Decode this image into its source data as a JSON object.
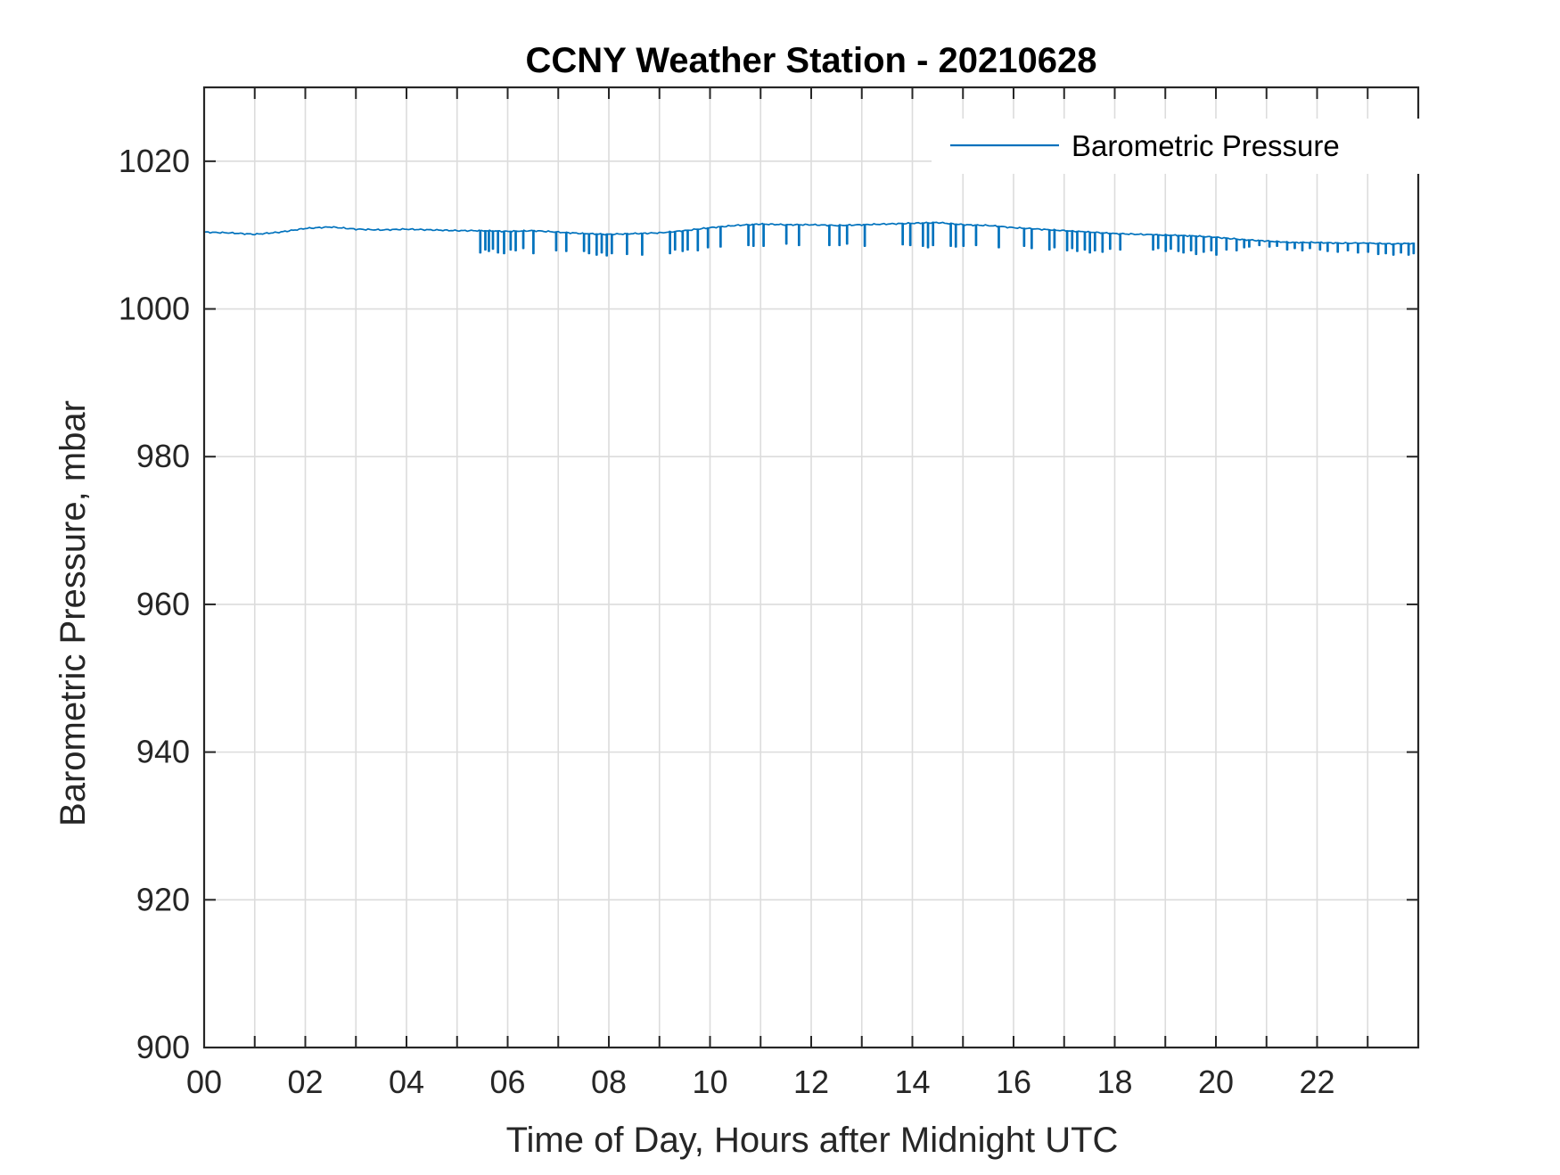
{
  "chart_data": {
    "type": "line",
    "title": "CCNY Weather Station - 20210628",
    "xlabel": "Time of Day, Hours after Midnight UTC",
    "ylabel": "Barometric Pressure, mbar",
    "xlim": [
      0,
      24
    ],
    "ylim": [
      900,
      1030
    ],
    "xticks": [
      0,
      2,
      4,
      6,
      8,
      10,
      12,
      14,
      16,
      18,
      20,
      22
    ],
    "xtick_labels": [
      "00",
      "02",
      "04",
      "06",
      "08",
      "10",
      "12",
      "14",
      "16",
      "18",
      "20",
      "22"
    ],
    "yticks": [
      900,
      920,
      940,
      960,
      980,
      1000,
      1020
    ],
    "ytick_labels": [
      "900",
      "920",
      "940",
      "960",
      "980",
      "1000",
      "1020"
    ],
    "grid": true,
    "legend_position": "top-right",
    "series": [
      {
        "name": "Barometric Pressure",
        "color": "#0072BD",
        "x": [
          0.0,
          0.5,
          1.0,
          1.5,
          2.0,
          2.5,
          3.0,
          3.5,
          4.0,
          4.5,
          5.0,
          5.5,
          6.0,
          6.5,
          7.0,
          7.5,
          8.0,
          8.5,
          9.0,
          9.5,
          10.0,
          10.5,
          11.0,
          11.5,
          12.0,
          12.5,
          13.0,
          13.5,
          14.0,
          14.5,
          15.0,
          15.5,
          16.0,
          16.5,
          17.0,
          17.5,
          18.0,
          18.5,
          19.0,
          19.5,
          20.0,
          20.5,
          21.0,
          21.5,
          22.0,
          22.5,
          23.0,
          23.5,
          23.95
        ],
        "values": [
          1010.4,
          1010.3,
          1010.1,
          1010.4,
          1010.9,
          1011.1,
          1010.8,
          1010.7,
          1010.8,
          1010.7,
          1010.6,
          1010.6,
          1010.5,
          1010.6,
          1010.4,
          1010.2,
          1010.1,
          1010.2,
          1010.3,
          1010.6,
          1011.0,
          1011.3,
          1011.5,
          1011.4,
          1011.4,
          1011.3,
          1011.4,
          1011.5,
          1011.6,
          1011.7,
          1011.4,
          1011.3,
          1011.0,
          1010.8,
          1010.6,
          1010.4,
          1010.2,
          1010.1,
          1010.0,
          1009.9,
          1009.7,
          1009.4,
          1009.2,
          1009.0,
          1009.0,
          1008.9,
          1008.9,
          1008.8,
          1008.9
        ]
      }
    ],
    "dropouts": [
      [
        5.45,
        1007.6
      ],
      [
        5.55,
        1008.0
      ],
      [
        5.62,
        1007.8
      ],
      [
        5.7,
        1008.1
      ],
      [
        5.8,
        1007.6
      ],
      [
        5.92,
        1007.5
      ],
      [
        6.05,
        1008.0
      ],
      [
        6.15,
        1007.9
      ],
      [
        6.3,
        1008.2
      ],
      [
        6.5,
        1007.5
      ],
      [
        6.95,
        1007.9
      ],
      [
        7.15,
        1007.8
      ],
      [
        7.5,
        1007.8
      ],
      [
        7.6,
        1007.5
      ],
      [
        7.75,
        1007.3
      ],
      [
        7.85,
        1007.6
      ],
      [
        7.95,
        1007.2
      ],
      [
        8.05,
        1007.5
      ],
      [
        8.35,
        1007.4
      ],
      [
        8.65,
        1007.3
      ],
      [
        9.2,
        1007.5
      ],
      [
        9.3,
        1008.0
      ],
      [
        9.45,
        1007.8
      ],
      [
        9.55,
        1008.0
      ],
      [
        9.75,
        1007.9
      ],
      [
        9.95,
        1008.3
      ],
      [
        10.2,
        1008.4
      ],
      [
        10.75,
        1008.6
      ],
      [
        10.85,
        1008.5
      ],
      [
        11.05,
        1008.5
      ],
      [
        11.5,
        1008.8
      ],
      [
        11.75,
        1008.6
      ],
      [
        12.35,
        1008.6
      ],
      [
        12.55,
        1008.6
      ],
      [
        12.7,
        1008.8
      ],
      [
        13.05,
        1008.5
      ],
      [
        13.8,
        1008.7
      ],
      [
        13.95,
        1008.6
      ],
      [
        14.2,
        1008.5
      ],
      [
        14.3,
        1008.3
      ],
      [
        14.4,
        1008.6
      ],
      [
        14.75,
        1008.5
      ],
      [
        14.85,
        1008.4
      ],
      [
        15.0,
        1008.5
      ],
      [
        15.25,
        1008.6
      ],
      [
        15.7,
        1008.3
      ],
      [
        16.2,
        1008.5
      ],
      [
        16.35,
        1008.2
      ],
      [
        16.7,
        1008.0
      ],
      [
        16.8,
        1008.3
      ],
      [
        17.05,
        1007.9
      ],
      [
        17.15,
        1008.2
      ],
      [
        17.25,
        1007.8
      ],
      [
        17.4,
        1008.0
      ],
      [
        17.5,
        1007.6
      ],
      [
        17.6,
        1007.9
      ],
      [
        17.75,
        1007.7
      ],
      [
        17.9,
        1008.1
      ],
      [
        18.1,
        1008.0
      ],
      [
        18.75,
        1008.0
      ],
      [
        18.85,
        1008.2
      ],
      [
        19.0,
        1007.8
      ],
      [
        19.1,
        1008.1
      ],
      [
        19.25,
        1007.8
      ],
      [
        19.35,
        1007.6
      ],
      [
        19.5,
        1007.9
      ],
      [
        19.6,
        1007.4
      ],
      [
        19.75,
        1007.7
      ],
      [
        19.9,
        1007.9
      ],
      [
        20.0,
        1007.3
      ],
      [
        20.2,
        1008.0
      ],
      [
        20.4,
        1007.9
      ],
      [
        20.55,
        1008.3
      ],
      [
        20.65,
        1008.4
      ],
      [
        20.85,
        1008.6
      ],
      [
        21.05,
        1008.4
      ],
      [
        21.2,
        1008.5
      ],
      [
        21.4,
        1008.0
      ],
      [
        21.55,
        1008.2
      ],
      [
        21.7,
        1007.9
      ],
      [
        21.85,
        1008.2
      ],
      [
        22.05,
        1008.0
      ],
      [
        22.2,
        1007.8
      ],
      [
        22.4,
        1007.7
      ],
      [
        22.6,
        1007.9
      ],
      [
        22.8,
        1007.6
      ],
      [
        23.0,
        1007.7
      ],
      [
        23.2,
        1007.4
      ],
      [
        23.35,
        1007.5
      ],
      [
        23.5,
        1007.3
      ],
      [
        23.65,
        1007.6
      ],
      [
        23.8,
        1007.3
      ],
      [
        23.9,
        1007.5
      ]
    ]
  }
}
